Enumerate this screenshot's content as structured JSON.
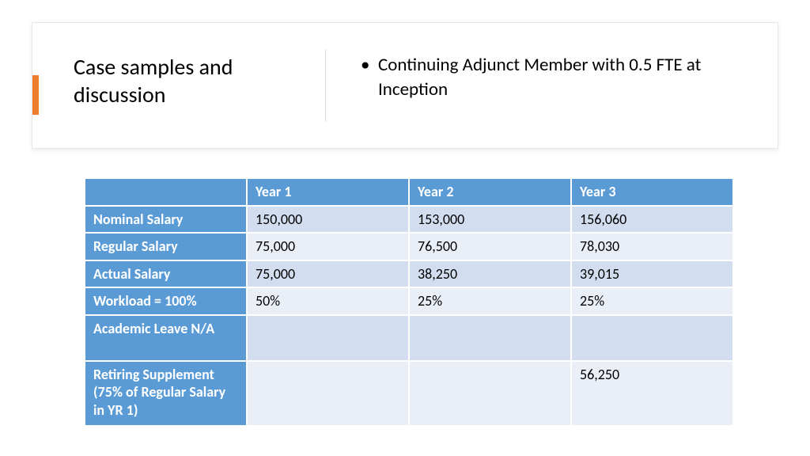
{
  "header": {
    "title": "Case samples and discussion",
    "bullet": "Continuing Adjunct Member with 0.5 FTE at Inception",
    "accent_color": "#ed7d31"
  },
  "table": {
    "header_bg": "#5b9bd5",
    "header_fg": "#ffffff",
    "band_odd": "#d2deef",
    "band_even": "#eaeff7",
    "columns": [
      "",
      "Year 1",
      "Year 2",
      "Year 3"
    ],
    "rows": [
      {
        "label": "Nominal Salary",
        "cells": [
          "150,000",
          "153,000",
          "156,060"
        ]
      },
      {
        "label": "Regular Salary",
        "cells": [
          "75,000",
          "76,500",
          "78,030"
        ]
      },
      {
        "label": "Actual Salary",
        "cells": [
          "75,000",
          "38,250",
          "39,015"
        ]
      },
      {
        "label": "Workload = 100%",
        "cells": [
          "50%",
          "25%",
          "25%"
        ]
      },
      {
        "label": "Academic Leave N/A",
        "cells": [
          "",
          "",
          ""
        ]
      },
      {
        "label": "Retiring Supplement (75% of Regular Salary in YR 1)",
        "cells": [
          "",
          "",
          "56,250"
        ]
      }
    ]
  }
}
